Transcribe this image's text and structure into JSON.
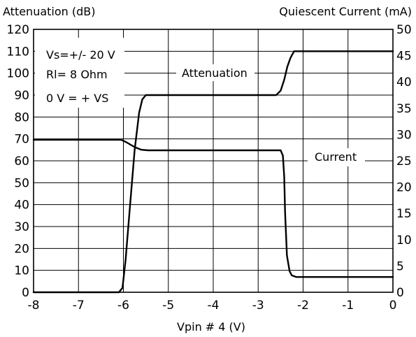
{
  "chart_data": {
    "type": "line",
    "xlabel": "Vpin # 4 (V)",
    "ylabel_left": "Attenuation (dB)",
    "ylabel_right": "Quiescent Current (mA)",
    "xlim": [
      -8,
      0
    ],
    "ylim_left": [
      0,
      120
    ],
    "ylim_right": [
      0,
      50
    ],
    "x_ticks": [
      -8,
      -7,
      -6,
      -5,
      -4,
      -3,
      -2,
      -1,
      0
    ],
    "y_ticks_left": [
      0,
      10,
      20,
      30,
      40,
      50,
      60,
      70,
      80,
      90,
      100,
      110,
      120
    ],
    "y_ticks_right": [
      0,
      5,
      10,
      15,
      20,
      25,
      30,
      35,
      40,
      45,
      50
    ],
    "grid": true,
    "annotations": [
      "Vs=+/- 20 V",
      "Rl= 8 Ohm",
      "0 V = + VS"
    ],
    "series": [
      {
        "name": "Attenuation",
        "axis": "left",
        "x": [
          -8,
          -6.1,
          -6.02,
          -5.95,
          -5.85,
          -5.75,
          -5.65,
          -5.58,
          -5.5,
          -5.4,
          -3.0,
          -2.6,
          -2.5,
          -2.42,
          -2.35,
          -2.28,
          -2.2,
          -2.1,
          0
        ],
        "y": [
          0,
          0,
          2,
          15,
          40,
          65,
          82,
          88,
          90,
          90,
          90,
          90,
          92,
          97,
          103,
          107,
          110,
          110,
          110
        ]
      },
      {
        "name": "Current",
        "axis": "right",
        "x": [
          -8,
          -6.05,
          -5.95,
          -5.75,
          -5.6,
          -5.45,
          -2.6,
          -2.5,
          -2.45,
          -2.42,
          -2.4,
          -2.36,
          -2.3,
          -2.25,
          -2.15,
          -2.0,
          0
        ],
        "y": [
          29,
          29,
          28.6,
          27.6,
          27.1,
          27,
          27,
          27,
          26,
          22,
          15,
          7,
          4,
          3.2,
          2.9,
          2.9,
          2.9
        ]
      }
    ]
  }
}
